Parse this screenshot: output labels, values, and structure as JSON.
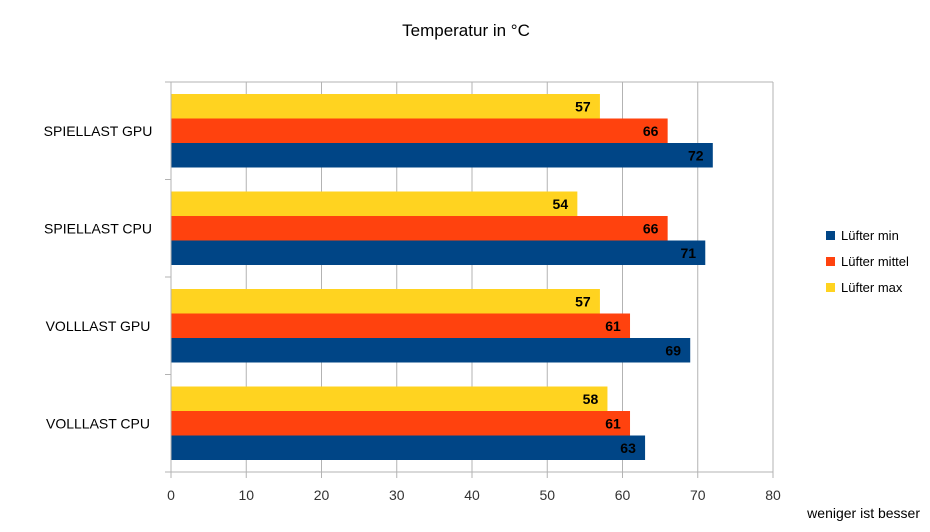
{
  "chart_data": {
    "type": "bar",
    "orientation": "horizontal",
    "title": "Temperatur in °C",
    "xlabel": "",
    "ylabel": "",
    "categories": [
      "SPIELLAST GPU",
      "SPIELLAST CPU",
      "VOLLLAST  GPU",
      "VOLLLAST  CPU"
    ],
    "series": [
      {
        "name": "Lüfter min",
        "color": "#004586",
        "values": [
          72,
          71,
          69,
          63
        ]
      },
      {
        "name": "Lüfter mittel",
        "color": "#FF420E",
        "values": [
          66,
          66,
          61,
          61
        ]
      },
      {
        "name": "Lüfter max",
        "color": "#FFD320",
        "values": [
          57,
          54,
          57,
          58
        ]
      }
    ],
    "xlim": [
      0,
      80
    ],
    "xticks": [
      "0",
      "10",
      "20",
      "30",
      "40",
      "50",
      "60",
      "70",
      "80"
    ],
    "grid": true,
    "legend_position": "right",
    "annotation": "weniger ist besser"
  }
}
